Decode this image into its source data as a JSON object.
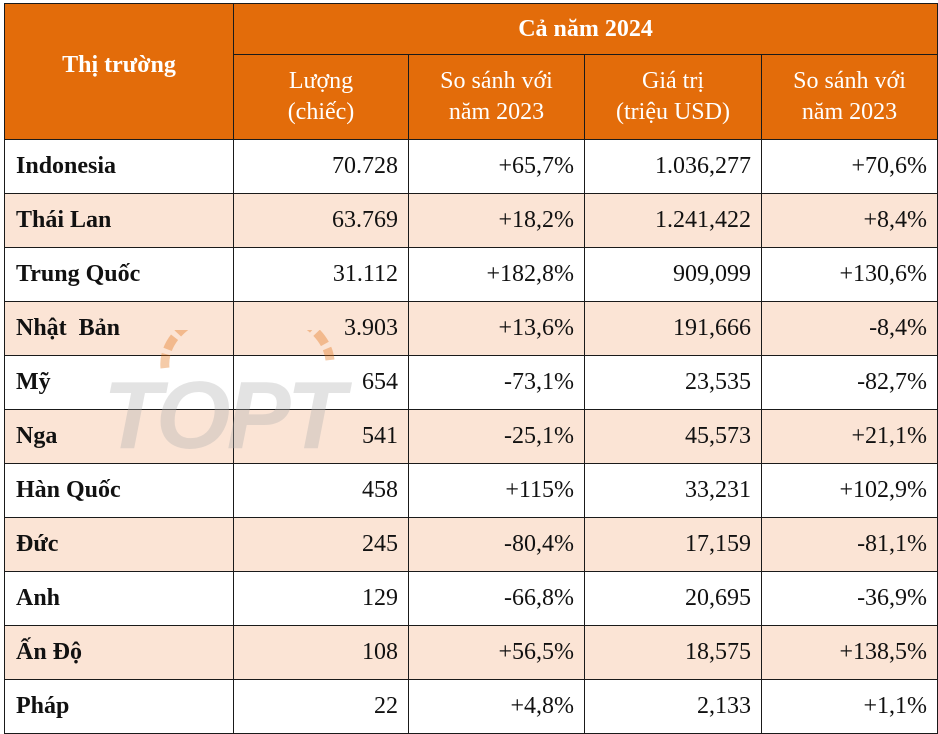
{
  "table": {
    "market_header": "Thị trường",
    "period_header": "Cả năm 2024",
    "column_headers": [
      {
        "line1": "Lượng",
        "line2": "(chiếc)"
      },
      {
        "line1": "So sánh với",
        "line2": "năm 2023"
      },
      {
        "line1": "Giá trị",
        "line2": "(triệu USD)"
      },
      {
        "line1": "So sánh với",
        "line2": "năm 2023"
      }
    ],
    "rows": [
      {
        "market": "Indonesia",
        "quantity": "70.728",
        "quantity_change": "+65,7%",
        "value": "1.036,277",
        "value_change": "+70,6%"
      },
      {
        "market": "Thái Lan",
        "quantity": "63.769",
        "quantity_change": "+18,2%",
        "value": "1.241,422",
        "value_change": "+8,4%"
      },
      {
        "market": "Trung Quốc",
        "quantity": "31.112",
        "quantity_change": "+182,8%",
        "value": "909,099",
        "value_change": "+130,6%"
      },
      {
        "market": "Nhật  Bản",
        "quantity": "3.903",
        "quantity_change": "+13,6%",
        "value": "191,666",
        "value_change": "-8,4%"
      },
      {
        "market": "Mỹ",
        "quantity": "654",
        "quantity_change": "-73,1%",
        "value": "23,535",
        "value_change": "-82,7%"
      },
      {
        "market": "Nga",
        "quantity": "541",
        "quantity_change": "-25,1%",
        "value": "45,573",
        "value_change": "+21,1%"
      },
      {
        "market": "Hàn Quốc",
        "quantity": "458",
        "quantity_change": "+115%",
        "value": "33,231",
        "value_change": "+102,9%"
      },
      {
        "market": "Đức",
        "quantity": "245",
        "quantity_change": "-80,4%",
        "value": "17,159",
        "value_change": "-81,1%"
      },
      {
        "market": "Anh",
        "quantity": "129",
        "quantity_change": "-66,8%",
        "value": "20,695",
        "value_change": "-36,9%"
      },
      {
        "market": "Ấn Độ",
        "quantity": "108",
        "quantity_change": "+56,5%",
        "value": "18,575",
        "value_change": "+138,5%"
      },
      {
        "market": "Pháp",
        "quantity": "22",
        "quantity_change": "+4,8%",
        "value": "2,133",
        "value_change": "+1,1%"
      }
    ]
  },
  "watermark": {
    "text": "TOPT",
    "color": "#b0b0b0",
    "accent": "#e36c0a"
  },
  "colors": {
    "header_bg": "#e36c0a",
    "header_text": "#ffffff",
    "stripe_bg": "#fbe4d5",
    "border": "#1a1a1a"
  }
}
